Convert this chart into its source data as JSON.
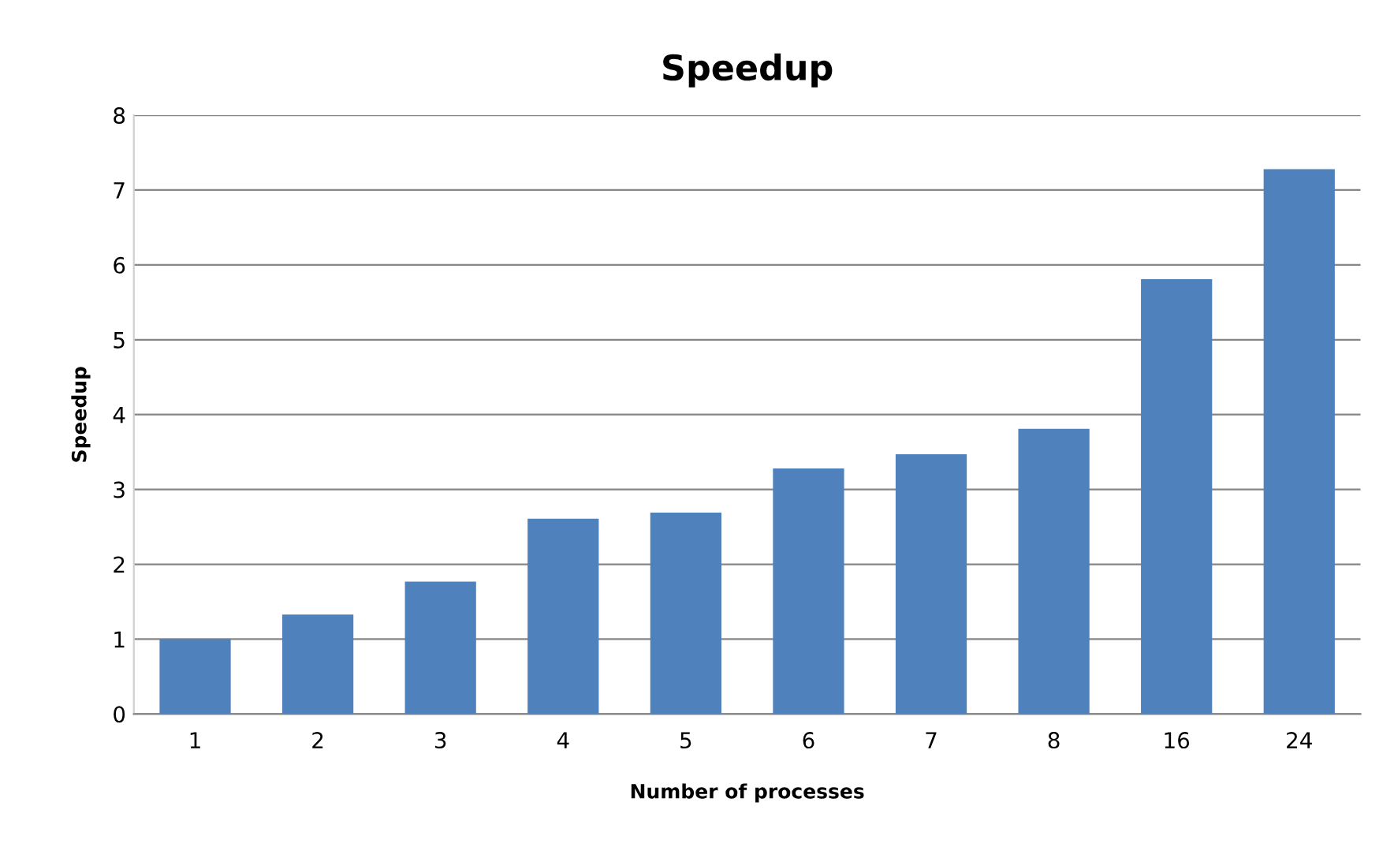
{
  "chart_data": {
    "type": "bar",
    "title": "Speedup",
    "xlabel": "Number of processes",
    "ylabel": "Speedup",
    "categories": [
      "1",
      "2",
      "3",
      "4",
      "5",
      "6",
      "7",
      "8",
      "16",
      "24"
    ],
    "values": [
      1.0,
      1.33,
      1.77,
      2.61,
      2.69,
      3.28,
      3.47,
      3.81,
      5.81,
      7.28
    ],
    "color": "#4f81bd",
    "ylim": [
      0,
      8
    ],
    "yticks": [
      0,
      1,
      2,
      3,
      4,
      5,
      6,
      7,
      8
    ],
    "grid": "y",
    "legend": false
  }
}
